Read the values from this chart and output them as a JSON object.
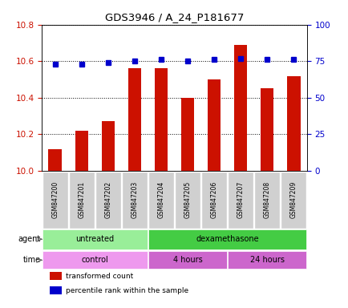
{
  "title": "GDS3946 / A_24_P181677",
  "samples": [
    "GSM847200",
    "GSM847201",
    "GSM847202",
    "GSM847203",
    "GSM847204",
    "GSM847205",
    "GSM847206",
    "GSM847207",
    "GSM847208",
    "GSM847209"
  ],
  "bar_values": [
    10.12,
    10.22,
    10.27,
    10.56,
    10.56,
    10.4,
    10.5,
    10.69,
    10.45,
    10.52
  ],
  "dot_values": [
    73,
    73,
    74,
    75,
    76,
    75,
    76,
    77,
    76,
    76
  ],
  "ylim_left": [
    10.0,
    10.8
  ],
  "ylim_right": [
    0,
    100
  ],
  "yticks_left": [
    10.0,
    10.2,
    10.4,
    10.6,
    10.8
  ],
  "yticks_right": [
    0,
    25,
    50,
    75,
    100
  ],
  "bar_color": "#cc1100",
  "dot_color": "#0000cc",
  "bar_bottom": 10.0,
  "agent_labels": [
    {
      "text": "untreated",
      "start": 0,
      "end": 3,
      "color": "#99ee99"
    },
    {
      "text": "dexamethasone",
      "start": 4,
      "end": 9,
      "color": "#44cc44"
    }
  ],
  "time_labels": [
    {
      "text": "control",
      "start": 0,
      "end": 3,
      "color": "#ee99ee"
    },
    {
      "text": "4 hours",
      "start": 4,
      "end": 6,
      "color": "#cc66cc"
    },
    {
      "text": "24 hours",
      "start": 7,
      "end": 9,
      "color": "#cc66cc"
    }
  ],
  "legend_items": [
    {
      "color": "#cc1100",
      "label": "transformed count"
    },
    {
      "color": "#0000cc",
      "label": "percentile rank within the sample"
    }
  ],
  "background_color": "#ffffff",
  "plot_bg": "#ffffff",
  "tick_label_color_left": "#cc1100",
  "tick_label_color_right": "#0000cc",
  "grid_color": "#000000",
  "xticklabel_bg": "#cccccc"
}
